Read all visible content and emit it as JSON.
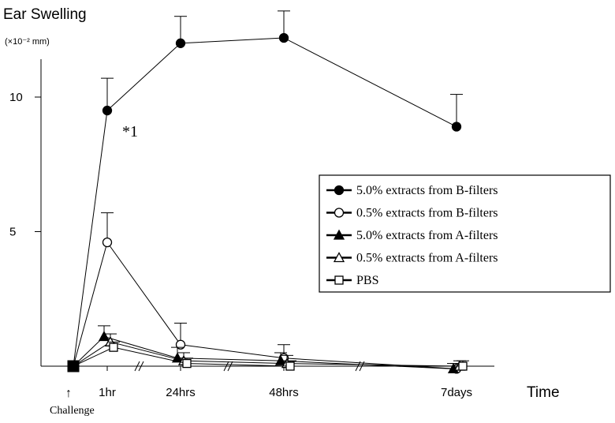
{
  "chart_data": {
    "type": "line",
    "title": "Ear Swelling",
    "ylabel_unit": "(×10⁻² mm)",
    "xlabel": "Time",
    "challenge_label": "Challenge",
    "challenge_arrow": "↑",
    "annotation": "*1",
    "categories": [
      "",
      "1hr",
      "24hrs",
      "48hrs",
      "7days"
    ],
    "y_ticks": [
      5,
      10
    ],
    "ylim": [
      0,
      13.5
    ],
    "grid": false,
    "legend_position": "right",
    "series": [
      {
        "name": "5.0% extracts from B-filters",
        "marker": "filled-circle",
        "values": [
          0,
          9.5,
          12,
          12.2,
          8.9
        ],
        "errors": [
          0,
          1.2,
          1.0,
          1.0,
          1.2
        ]
      },
      {
        "name": "0.5% extracts from B-filters",
        "marker": "open-circle",
        "values": [
          0,
          4.6,
          0.8,
          0.3,
          -0.1
        ],
        "errors": [
          0,
          1.1,
          0.8,
          0.5,
          0.2
        ]
      },
      {
        "name": "5.0% extracts from A-filters",
        "marker": "filled-triangle",
        "values": [
          0,
          1.1,
          0.3,
          0.2,
          -0.1
        ],
        "errors": [
          0,
          0.4,
          0.4,
          0.3,
          0.2
        ]
      },
      {
        "name": "0.5% extracts from A-filters",
        "marker": "open-triangle",
        "values": [
          0,
          0.9,
          0.2,
          0.1,
          0.0
        ],
        "errors": [
          0,
          0.3,
          0.3,
          0.3,
          0.2
        ]
      },
      {
        "name": "PBS",
        "marker": "open-square",
        "values": [
          0,
          0.7,
          0.1,
          0.0,
          0.0
        ],
        "errors": [
          0,
          0.2,
          0.2,
          0.2,
          0.2
        ]
      }
    ]
  }
}
